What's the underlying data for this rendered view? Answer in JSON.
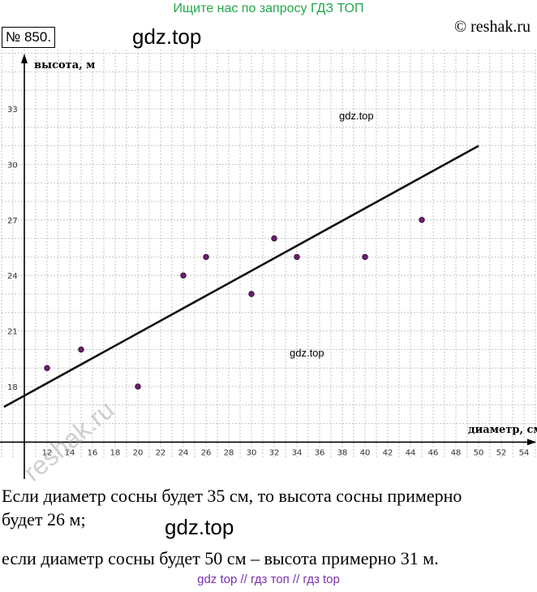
{
  "header": {
    "banner": "Ищите нас по запросу ГДЗ ТОП",
    "problem_number": "№ 850.",
    "copyright": "© reshak.ru",
    "watermark_main": "gdz.top"
  },
  "watermarks": {
    "chart_top": "gdz.top",
    "chart_mid": "gdz.top",
    "text_mid": "gdz.top",
    "reshak": "reshak.ru"
  },
  "chart_data": {
    "type": "scatter",
    "ylabel": "высота, м",
    "xlabel": "диаметр, см",
    "x_ticks": [
      12,
      14,
      16,
      18,
      20,
      22,
      24,
      26,
      28,
      30,
      32,
      34,
      36,
      38,
      40,
      42,
      44,
      46,
      48,
      50,
      52,
      54
    ],
    "y_ticks": [
      18,
      21,
      24,
      27,
      30,
      33
    ],
    "xlim": [
      8,
      55
    ],
    "ylim": [
      14.1,
      36.2
    ],
    "grid": true,
    "points": [
      {
        "x": 12,
        "y": 19
      },
      {
        "x": 15,
        "y": 20
      },
      {
        "x": 20,
        "y": 18
      },
      {
        "x": 24,
        "y": 24
      },
      {
        "x": 26,
        "y": 25
      },
      {
        "x": 30,
        "y": 23
      },
      {
        "x": 32,
        "y": 26
      },
      {
        "x": 34,
        "y": 25
      },
      {
        "x": 40,
        "y": 25
      },
      {
        "x": 45,
        "y": 27
      }
    ],
    "trend_line": {
      "x": [
        8.2,
        50
      ],
      "y": [
        16.9,
        31
      ]
    },
    "colors": {
      "point": "#6a1f6e",
      "line": "#111111",
      "grid": "#b8b8b8"
    }
  },
  "answer": {
    "line1": "Если диаметр сосны будет 35 см, то высота сосны примерно",
    "line2": "будет 26 м;",
    "line3": "если диаметр сосны будет 50 см – высота примерно 31 м."
  },
  "footer": {
    "links": "gdz top  //  гдз топ  //  гдз top"
  }
}
